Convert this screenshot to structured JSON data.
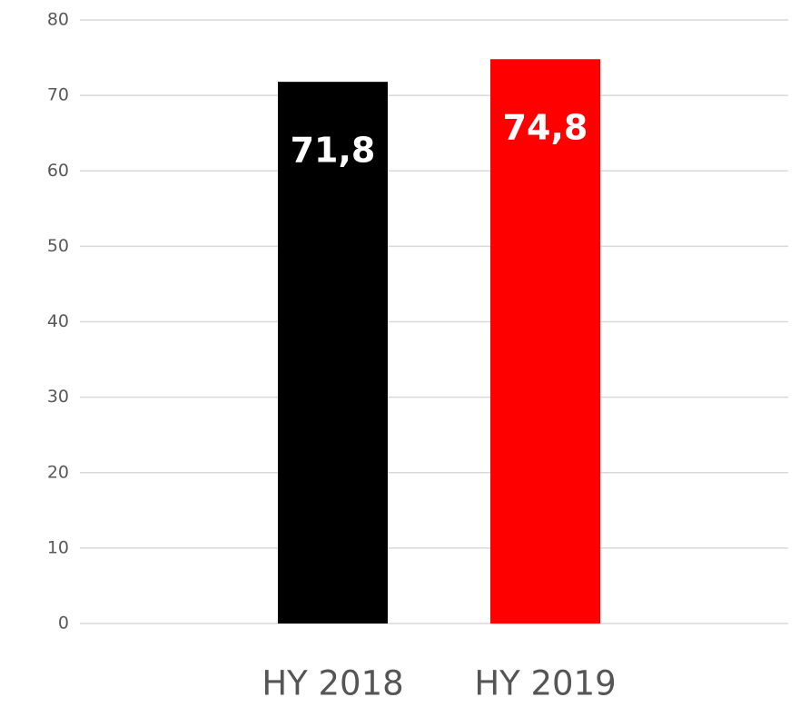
{
  "chart_data": {
    "type": "bar",
    "categories": [
      "HY 2018",
      "HY 2019"
    ],
    "values": [
      71.8,
      74.8
    ],
    "value_labels": [
      "71,8",
      "74,8"
    ],
    "colors": [
      "#000000",
      "#ff0000"
    ],
    "ylim": [
      0,
      80
    ],
    "yticks": [
      0,
      10,
      20,
      30,
      40,
      50,
      60,
      70,
      80
    ],
    "grid": true
  }
}
